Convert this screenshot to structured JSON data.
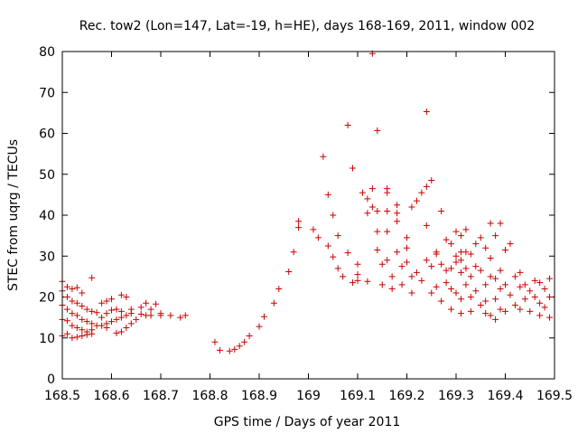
{
  "chart_data": {
    "type": "scatter",
    "title": "Rec. tow2 (Lon=147, Lat=-19, h=HE), days 168-169, 2011, window 002",
    "xlabel": "GPS time / Days of year 2011",
    "ylabel": "STEC from uqrg / TECUs",
    "xlim": [
      168.5,
      169.5
    ],
    "ylim": [
      0,
      80
    ],
    "grid": false,
    "x_ticks": [
      {
        "value": 168.5,
        "label": "168.5"
      },
      {
        "value": 168.6,
        "label": "168.6"
      },
      {
        "value": 168.7,
        "label": "168.7"
      },
      {
        "value": 168.8,
        "label": "168.8"
      },
      {
        "value": 168.9,
        "label": "168.9"
      },
      {
        "value": 169.0,
        "label": "169"
      },
      {
        "value": 169.1,
        "label": "169.1"
      },
      {
        "value": 169.2,
        "label": "169.2"
      },
      {
        "value": 169.3,
        "label": "169.3"
      },
      {
        "value": 169.4,
        "label": "169.4"
      },
      {
        "value": 169.5,
        "label": "169.5"
      }
    ],
    "y_ticks": [
      {
        "value": 0,
        "label": "0"
      },
      {
        "value": 10,
        "label": "10"
      },
      {
        "value": 20,
        "label": "20"
      },
      {
        "value": 30,
        "label": "30"
      },
      {
        "value": 40,
        "label": "40"
      },
      {
        "value": 50,
        "label": "50"
      },
      {
        "value": 60,
        "label": "60"
      },
      {
        "value": 70,
        "label": "70"
      },
      {
        "value": 80,
        "label": "80"
      }
    ],
    "marker": "+",
    "color": "#cc0000",
    "series": [
      {
        "name": "STEC",
        "points": [
          [
            168.5,
            23.8
          ],
          [
            168.51,
            22.5
          ],
          [
            168.52,
            22.0
          ],
          [
            168.53,
            22.3
          ],
          [
            168.54,
            21.0
          ],
          [
            168.56,
            24.7
          ],
          [
            168.5,
            21.5
          ],
          [
            168.51,
            20.0
          ],
          [
            168.52,
            19.0
          ],
          [
            168.53,
            18.5
          ],
          [
            168.54,
            17.8
          ],
          [
            168.55,
            17.0
          ],
          [
            168.56,
            16.5
          ],
          [
            168.57,
            16.2
          ],
          [
            168.58,
            18.5
          ],
          [
            168.59,
            19.0
          ],
          [
            168.6,
            19.5
          ],
          [
            168.62,
            20.5
          ],
          [
            168.63,
            20.0
          ],
          [
            168.5,
            18.0
          ],
          [
            168.51,
            17.0
          ],
          [
            168.52,
            16.0
          ],
          [
            168.53,
            15.5
          ],
          [
            168.54,
            14.5
          ],
          [
            168.55,
            14.0
          ],
          [
            168.56,
            13.5
          ],
          [
            168.57,
            13.0
          ],
          [
            168.58,
            15.0
          ],
          [
            168.59,
            16.0
          ],
          [
            168.6,
            16.8
          ],
          [
            168.61,
            17.0
          ],
          [
            168.62,
            16.5
          ],
          [
            168.64,
            17.0
          ],
          [
            168.66,
            17.5
          ],
          [
            168.67,
            18.5
          ],
          [
            168.69,
            18.3
          ],
          [
            168.5,
            14.5
          ],
          [
            168.51,
            14.2
          ],
          [
            168.52,
            13.0
          ],
          [
            168.53,
            12.5
          ],
          [
            168.54,
            12.0
          ],
          [
            168.55,
            11.5
          ],
          [
            168.56,
            12.0
          ],
          [
            168.58,
            13.0
          ],
          [
            168.59,
            13.5
          ],
          [
            168.6,
            14.0
          ],
          [
            168.61,
            14.5
          ],
          [
            168.62,
            15.0
          ],
          [
            168.63,
            15.5
          ],
          [
            168.64,
            16.0
          ],
          [
            168.66,
            15.8
          ],
          [
            168.68,
            15.5
          ],
          [
            168.7,
            15.5
          ],
          [
            168.5,
            10.5
          ],
          [
            168.51,
            11.0
          ],
          [
            168.52,
            10.0
          ],
          [
            168.53,
            10.2
          ],
          [
            168.54,
            10.5
          ],
          [
            168.55,
            10.8
          ],
          [
            168.56,
            11.0
          ],
          [
            168.59,
            12.5
          ],
          [
            168.61,
            11.2
          ],
          [
            168.62,
            11.5
          ],
          [
            168.63,
            12.5
          ],
          [
            168.64,
            13.5
          ],
          [
            168.65,
            14.5
          ],
          [
            168.67,
            15.5
          ],
          [
            168.68,
            17.0
          ],
          [
            168.7,
            16.0
          ],
          [
            168.72,
            15.5
          ],
          [
            168.74,
            15.0
          ],
          [
            168.75,
            15.5
          ],
          [
            168.81,
            9.0
          ],
          [
            168.82,
            7.0
          ],
          [
            168.84,
            6.8
          ],
          [
            168.85,
            7.2
          ],
          [
            168.86,
            8.0
          ],
          [
            168.87,
            9.0
          ],
          [
            168.88,
            10.5
          ],
          [
            168.9,
            12.8
          ],
          [
            168.91,
            15.2
          ],
          [
            168.93,
            18.5
          ],
          [
            168.94,
            22.0
          ],
          [
            168.96,
            26.2
          ],
          [
            168.97,
            31.0
          ],
          [
            168.98,
            37.0
          ],
          [
            168.98,
            38.5
          ],
          [
            169.01,
            36.5
          ],
          [
            169.02,
            34.5
          ],
          [
            169.03,
            54.3
          ],
          [
            169.04,
            32.5
          ],
          [
            169.04,
            45.0
          ],
          [
            169.05,
            40.0
          ],
          [
            169.05,
            29.8
          ],
          [
            169.06,
            35.0
          ],
          [
            169.06,
            27.0
          ],
          [
            169.07,
            25.0
          ],
          [
            169.08,
            62.0
          ],
          [
            169.08,
            30.8
          ],
          [
            169.09,
            23.5
          ],
          [
            169.09,
            51.5
          ],
          [
            169.1,
            24.0
          ],
          [
            169.1,
            25.5
          ],
          [
            169.1,
            28.0
          ],
          [
            169.11,
            45.5
          ],
          [
            169.12,
            44.0
          ],
          [
            169.12,
            40.5
          ],
          [
            169.12,
            23.8
          ],
          [
            169.13,
            79.5
          ],
          [
            169.13,
            46.5
          ],
          [
            169.13,
            42.0
          ],
          [
            169.14,
            60.7
          ],
          [
            169.14,
            41.0
          ],
          [
            169.14,
            36.0
          ],
          [
            169.14,
            31.5
          ],
          [
            169.15,
            28.0
          ],
          [
            169.15,
            23.0
          ],
          [
            169.16,
            46.5
          ],
          [
            169.16,
            45.5
          ],
          [
            169.16,
            41.0
          ],
          [
            169.16,
            36.0
          ],
          [
            169.16,
            29.0
          ],
          [
            169.17,
            22.0
          ],
          [
            169.17,
            25.0
          ],
          [
            169.18,
            42.5
          ],
          [
            169.18,
            40.5
          ],
          [
            169.18,
            38.5
          ],
          [
            169.18,
            31.0
          ],
          [
            169.19,
            27.5
          ],
          [
            169.19,
            23.0
          ],
          [
            169.2,
            34.5
          ],
          [
            169.2,
            32.0
          ],
          [
            169.2,
            28.5
          ],
          [
            169.21,
            42.0
          ],
          [
            169.21,
            25.0
          ],
          [
            169.21,
            21.0
          ],
          [
            169.22,
            43.5
          ],
          [
            169.22,
            26.0
          ],
          [
            169.23,
            45.5
          ],
          [
            169.23,
            24.0
          ],
          [
            169.24,
            65.3
          ],
          [
            169.24,
            47.0
          ],
          [
            169.24,
            37.5
          ],
          [
            169.24,
            29.0
          ],
          [
            169.25,
            48.5
          ],
          [
            169.25,
            27.5
          ],
          [
            169.25,
            21.0
          ],
          [
            169.26,
            31.0
          ],
          [
            169.26,
            30.5
          ],
          [
            169.26,
            22.5
          ],
          [
            169.27,
            41.0
          ],
          [
            169.27,
            28.0
          ],
          [
            169.27,
            19.0
          ],
          [
            169.28,
            34.0
          ],
          [
            169.28,
            26.5
          ],
          [
            169.28,
            23.5
          ],
          [
            169.29,
            33.0
          ],
          [
            169.29,
            27.0
          ],
          [
            169.29,
            22.0
          ],
          [
            169.29,
            17.0
          ],
          [
            169.3,
            36.0
          ],
          [
            169.3,
            30.0
          ],
          [
            169.3,
            28.5
          ],
          [
            169.3,
            21.0
          ],
          [
            169.31,
            35.0
          ],
          [
            169.31,
            31.0
          ],
          [
            169.31,
            29.0
          ],
          [
            169.31,
            26.0
          ],
          [
            169.31,
            19.5
          ],
          [
            169.31,
            16.0
          ],
          [
            169.32,
            36.5
          ],
          [
            169.32,
            31.0
          ],
          [
            169.32,
            27.0
          ],
          [
            169.32,
            23.0
          ],
          [
            169.33,
            30.5
          ],
          [
            169.33,
            25.0
          ],
          [
            169.33,
            20.0
          ],
          [
            169.33,
            16.5
          ],
          [
            169.34,
            33.0
          ],
          [
            169.34,
            27.5
          ],
          [
            169.34,
            21.5
          ],
          [
            169.35,
            34.5
          ],
          [
            169.35,
            26.5
          ],
          [
            169.35,
            18.0
          ],
          [
            169.36,
            32.0
          ],
          [
            169.36,
            23.0
          ],
          [
            169.36,
            19.0
          ],
          [
            169.36,
            16.0
          ],
          [
            169.37,
            38.0
          ],
          [
            169.37,
            29.5
          ],
          [
            169.37,
            25.0
          ],
          [
            169.37,
            15.5
          ],
          [
            169.38,
            35.0
          ],
          [
            169.38,
            24.5
          ],
          [
            169.38,
            19.5
          ],
          [
            169.38,
            14.5
          ],
          [
            169.39,
            38.0
          ],
          [
            169.39,
            26.5
          ],
          [
            169.39,
            22.0
          ],
          [
            169.39,
            17.0
          ],
          [
            169.4,
            31.5
          ],
          [
            169.4,
            23.0
          ],
          [
            169.4,
            16.5
          ],
          [
            169.41,
            33.0
          ],
          [
            169.41,
            20.5
          ],
          [
            169.42,
            25.0
          ],
          [
            169.42,
            18.0
          ],
          [
            169.43,
            26.0
          ],
          [
            169.43,
            22.5
          ],
          [
            169.43,
            17.0
          ],
          [
            169.44,
            23.0
          ],
          [
            169.44,
            19.5
          ],
          [
            169.45,
            21.5
          ],
          [
            169.45,
            16.5
          ],
          [
            169.46,
            24.0
          ],
          [
            169.46,
            20.0
          ],
          [
            169.47,
            23.5
          ],
          [
            169.47,
            18.5
          ],
          [
            169.47,
            15.5
          ],
          [
            169.48,
            22.0
          ],
          [
            169.48,
            17.5
          ],
          [
            169.49,
            24.5
          ],
          [
            169.49,
            20.0
          ],
          [
            169.49,
            15.0
          ]
        ]
      }
    ]
  }
}
